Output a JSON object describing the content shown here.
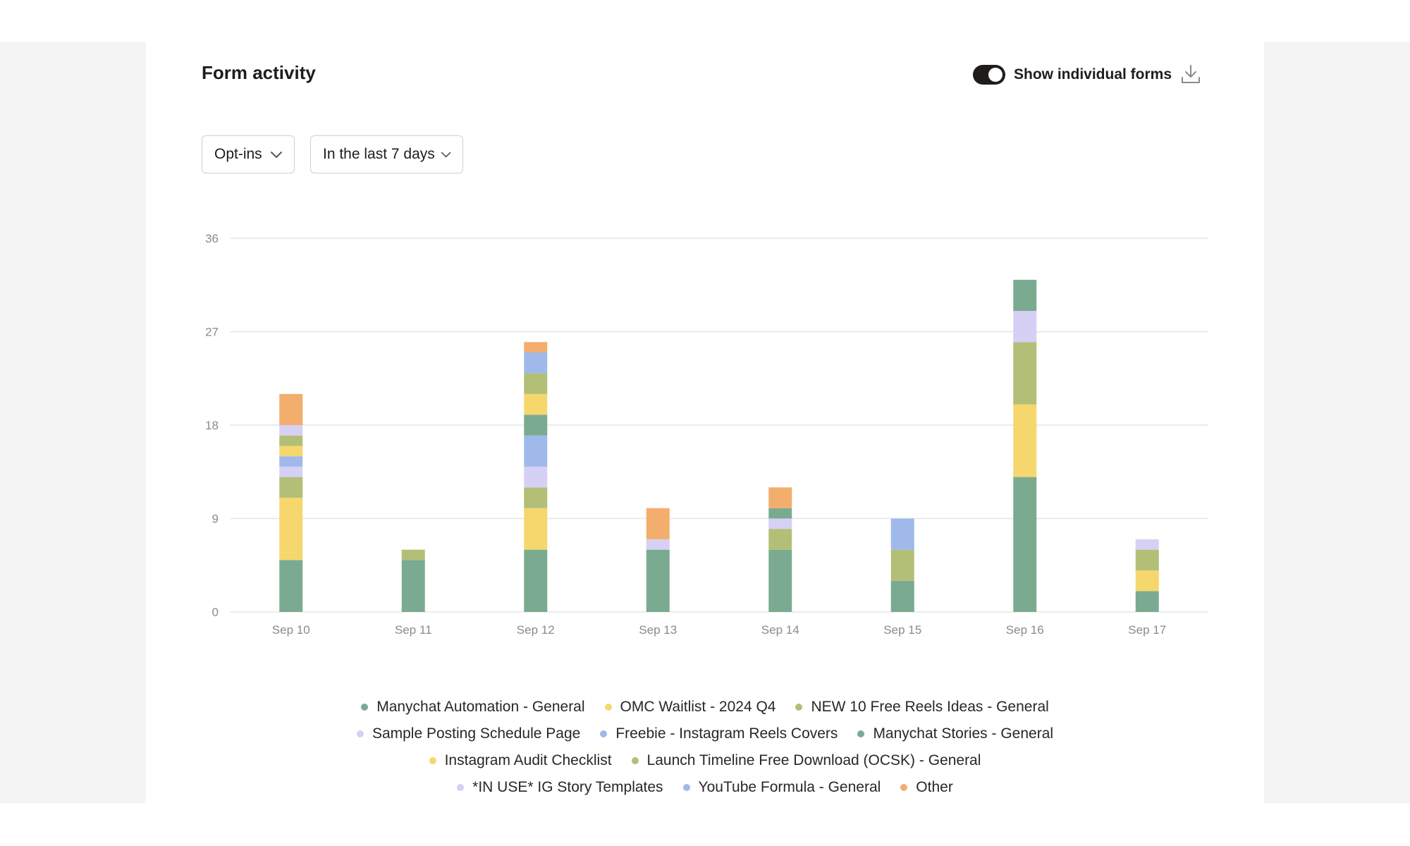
{
  "header": {
    "title": "Form activity",
    "toggle_label": "Show individual forms",
    "toggle_on": true
  },
  "filters": {
    "metric": "Opt-ins",
    "range": "In the last 7 days"
  },
  "icons": {
    "download": "download-icon",
    "chevron": "chevron-down-icon"
  },
  "colors": {
    "manychat_automation": "#7aab91",
    "omc_waitlist": "#f5d76e",
    "new_10_reels": "#b3bf76",
    "sample_schedule": "#d6d0f5",
    "freebie_reels_covers": "#9fb9ea",
    "manychat_stories": "#7aab91",
    "ig_audit": "#f5d76e",
    "launch_timeline": "#b3bf76",
    "ig_story_templates": "#d6d0f5",
    "youtube_formula": "#9fb9ea",
    "other": "#f3ad6c"
  },
  "chart_data": {
    "type": "bar",
    "stacked": true,
    "categories": [
      "Sep 10",
      "Sep 11",
      "Sep 12",
      "Sep 13",
      "Sep 14",
      "Sep 15",
      "Sep 16",
      "Sep 17"
    ],
    "ylim": [
      0,
      36
    ],
    "yticks": [
      0,
      9,
      18,
      27,
      36
    ],
    "grid": true,
    "legend_position": "bottom",
    "series": [
      {
        "name": "Manychat Automation - General",
        "color": "#7aab91",
        "values": [
          5,
          5,
          6,
          6,
          6,
          3,
          13,
          2
        ]
      },
      {
        "name": "OMC Waitlist - 2024 Q4",
        "color": "#f5d76e",
        "values": [
          6,
          0,
          4,
          0,
          0,
          0,
          7,
          2
        ]
      },
      {
        "name": "NEW 10 Free Reels Ideas - General",
        "color": "#b3bf76",
        "values": [
          2,
          1,
          2,
          0,
          2,
          3,
          6,
          2
        ]
      },
      {
        "name": "Sample Posting Schedule Page",
        "color": "#d6d0f5",
        "values": [
          1,
          0,
          2,
          1,
          1,
          0,
          3,
          1
        ]
      },
      {
        "name": "Freebie - Instagram Reels Covers",
        "color": "#9fb9ea",
        "values": [
          1,
          0,
          3,
          0,
          0,
          3,
          0,
          0
        ]
      },
      {
        "name": "Manychat Stories - General",
        "color": "#7aab91",
        "values": [
          0,
          0,
          2,
          0,
          1,
          0,
          3,
          0
        ]
      },
      {
        "name": "Instagram Audit Checklist",
        "color": "#f5d76e",
        "values": [
          1,
          0,
          2,
          0,
          0,
          0,
          0,
          0
        ]
      },
      {
        "name": "Launch Timeline Free Download (OCSK) - General",
        "color": "#b3bf76",
        "values": [
          1,
          0,
          2,
          0,
          0,
          0,
          0,
          0
        ]
      },
      {
        "name": "*IN USE* IG Story Templates",
        "color": "#d6d0f5",
        "values": [
          1,
          0,
          0,
          0,
          0,
          0,
          0,
          0
        ]
      },
      {
        "name": "YouTube Formula - General",
        "color": "#9fb9ea",
        "values": [
          0,
          0,
          2,
          0,
          0,
          0,
          0,
          0
        ]
      },
      {
        "name": "Other",
        "color": "#f3ad6c",
        "values": [
          3,
          0,
          1,
          3,
          2,
          0,
          0,
          0
        ]
      }
    ]
  }
}
